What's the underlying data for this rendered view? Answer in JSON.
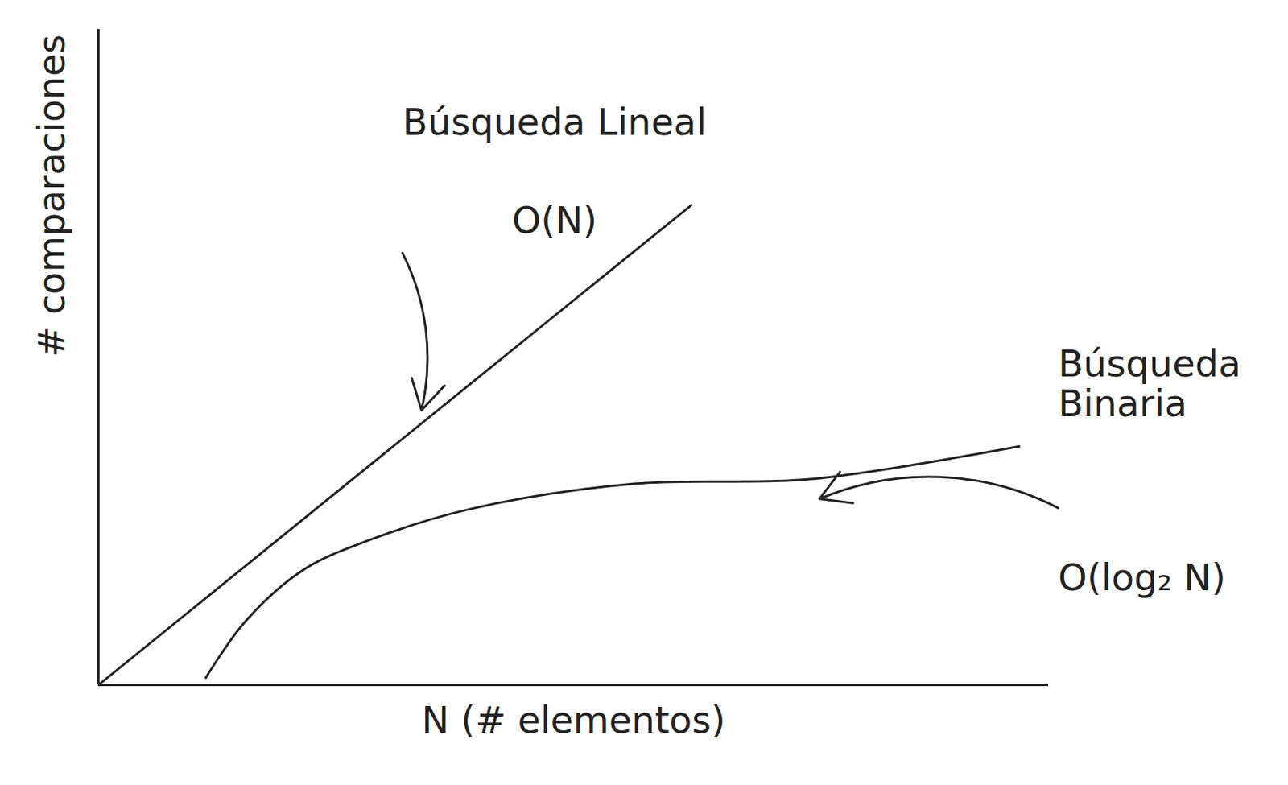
{
  "chart_data": {
    "type": "line",
    "xlabel": "N (# elementos)",
    "ylabel": "# comparaciones",
    "xlim": [
      0,
      100
    ],
    "ylim": [
      0,
      100
    ],
    "tick_labels": false,
    "grid": false,
    "series": [
      {
        "name": "Búsqueda Lineal",
        "color": "#222222",
        "x": [
          0,
          34,
          62.4
        ],
        "values": [
          0,
          39.9,
          73.2
        ]
      },
      {
        "name": "Búsqueda Binaria",
        "color": "#222222",
        "x": [
          11.3,
          15.4,
          21.5,
          28.7,
          39,
          56.4,
          74.9,
          96.9
        ],
        "values": [
          1.1,
          9.6,
          17.5,
          22.2,
          26.8,
          30.7,
          31.4,
          36.4
        ]
      }
    ],
    "annotations": [
      {
        "text": "O(N)",
        "series": "Búsqueda Lineal"
      },
      {
        "text": "O(log₂ N)",
        "series": "Búsqueda Binaria"
      }
    ]
  }
}
